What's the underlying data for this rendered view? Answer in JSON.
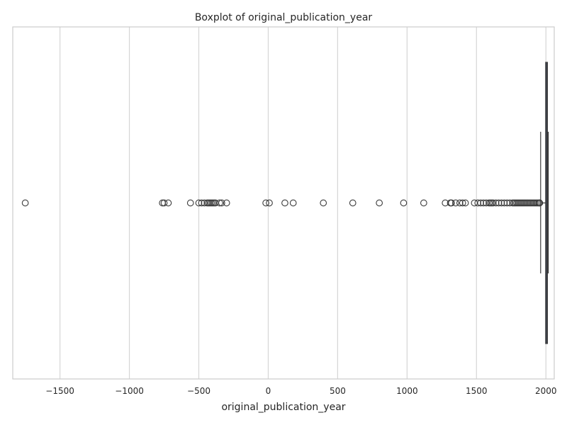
{
  "chart_data": {
    "type": "boxplot",
    "orientation": "horizontal",
    "title": "Boxplot of original_publication_year",
    "xlabel": "original_publication_year",
    "ylabel": "",
    "xlim": [
      -1840,
      2060
    ],
    "xticks": [
      -1500,
      -1000,
      -500,
      0,
      500,
      1000,
      1500,
      2000
    ],
    "xtick_labels": [
      "−1500",
      "−1000",
      "−500",
      "0",
      "500",
      "1000",
      "1500",
      "2000"
    ],
    "grid": "vertical",
    "box": {
      "whisker_low": 1962,
      "q1": 1998,
      "median": 2005,
      "q3": 2011,
      "whisker_high": 2017
    },
    "outliers": [
      -1750,
      -762,
      -750,
      -720,
      -560,
      -500,
      -480,
      -460,
      -440,
      -430,
      -420,
      -410,
      -400,
      -390,
      -380,
      -350,
      -335,
      -300,
      -17,
      8,
      120,
      180,
      397,
      609,
      800,
      975,
      1120,
      1275,
      1312,
      1320,
      1350,
      1380,
      1400,
      1420,
      1485,
      1510,
      1530,
      1550,
      1570,
      1590,
      1600,
      1610,
      1620,
      1640,
      1660,
      1680,
      1700,
      1720,
      1740,
      1760,
      1770,
      1780,
      1790,
      1800,
      1810,
      1820,
      1830,
      1840,
      1850,
      1860,
      1870,
      1880,
      1890,
      1900,
      1910,
      1920,
      1930,
      1940,
      1950,
      1955
    ],
    "colors": {
      "box_fill": "#4c6a9c",
      "line": "#3a3a3a",
      "grid": "#d6d6d6",
      "frame": "#cccccc",
      "outlier_edge": "#3a3a3a"
    }
  }
}
